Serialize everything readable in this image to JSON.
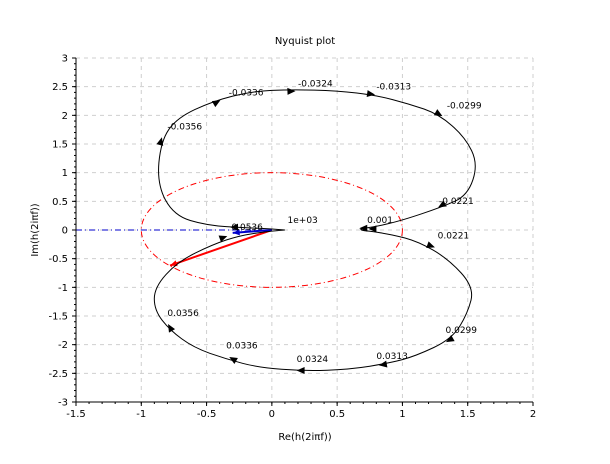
{
  "chart_data": {
    "type": "line",
    "title": "Nyquist plot",
    "xlabel": "Re(h(2iπf))",
    "ylabel": "Im(h(2iπf))",
    "xlim": [
      -1.5,
      2
    ],
    "ylim": [
      -3,
      3
    ],
    "xticks": [
      -1.5,
      -1,
      -0.5,
      0,
      0.5,
      1,
      1.5,
      2
    ],
    "xtick_labels": [
      "-1.5",
      "-1",
      "-0.5",
      "0",
      "0.5",
      "1",
      "1.5",
      "2"
    ],
    "yticks": [
      -3,
      -2.5,
      -2,
      -1.5,
      -1,
      -0.5,
      0,
      0.5,
      1,
      1.5,
      2,
      2.5,
      3
    ],
    "ytick_labels": [
      "-3",
      "-2.5",
      "-2",
      "-1.5",
      "-1",
      "-0.5",
      "0",
      "0.5",
      "1",
      "1.5",
      "2",
      "2.5",
      "3"
    ],
    "grid": true,
    "curve": {
      "points": [
        [
          0.1,
          0.0
        ],
        [
          0.0,
          0.02
        ],
        [
          -0.2,
          0.04
        ],
        [
          -0.5,
          0.08
        ],
        [
          -0.75,
          0.25
        ],
        [
          -0.88,
          0.8
        ],
        [
          -0.85,
          1.55
        ],
        [
          -0.73,
          1.95
        ],
        [
          -0.45,
          2.25
        ],
        [
          -0.15,
          2.42
        ],
        [
          0.15,
          2.45
        ],
        [
          0.5,
          2.43
        ],
        [
          0.8,
          2.35
        ],
        [
          1.05,
          2.2
        ],
        [
          1.28,
          2.02
        ],
        [
          1.48,
          1.62
        ],
        [
          1.58,
          1.15
        ],
        [
          1.5,
          0.6
        ],
        [
          1.3,
          0.4
        ],
        [
          1.0,
          0.17
        ],
        [
          0.8,
          0.06
        ],
        [
          0.7,
          0.03
        ],
        [
          0.67,
          0.0
        ],
        [
          0.78,
          -0.03
        ],
        [
          0.92,
          -0.08
        ],
        [
          1.12,
          -0.2
        ],
        [
          1.35,
          -0.5
        ],
        [
          1.55,
          -1.0
        ],
        [
          1.5,
          -1.45
        ],
        [
          1.38,
          -1.9
        ],
        [
          1.1,
          -2.2
        ],
        [
          0.9,
          -2.32
        ],
        [
          0.6,
          -2.43
        ],
        [
          0.25,
          -2.46
        ],
        [
          -0.1,
          -2.4
        ],
        [
          -0.35,
          -2.25
        ],
        [
          -0.6,
          -2.05
        ],
        [
          -0.78,
          -1.75
        ],
        [
          -0.9,
          -1.4
        ],
        [
          -0.9,
          -1.0
        ],
        [
          -0.72,
          -0.55
        ],
        [
          -0.45,
          -0.25
        ],
        [
          -0.25,
          -0.1
        ],
        [
          -0.05,
          -0.03
        ],
        [
          0.05,
          -0.01
        ],
        [
          0.1,
          0.0
        ]
      ],
      "arrows": [
        {
          "x": -0.29,
          "y": 0.05,
          "dir": 180
        },
        {
          "x": -0.85,
          "y": 1.55,
          "dir": 75
        },
        {
          "x": -0.42,
          "y": 2.23,
          "dir": 30
        },
        {
          "x": 0.15,
          "y": 2.42,
          "dir": 2
        },
        {
          "x": 0.76,
          "y": 2.37,
          "dir": -8
        },
        {
          "x": 1.28,
          "y": 2.02,
          "dir": -30
        },
        {
          "x": 1.3,
          "y": 0.43,
          "dir": -150
        },
        {
          "x": 0.7,
          "y": 0.03,
          "dir": 180
        },
        {
          "x": 0.77,
          "y": 0.02,
          "dir": 180
        },
        {
          "x": 1.22,
          "y": -0.28,
          "dir": -20
        },
        {
          "x": 1.36,
          "y": -1.92,
          "dir": 210
        },
        {
          "x": 0.85,
          "y": -2.35,
          "dir": 190
        },
        {
          "x": 0.22,
          "y": -2.45,
          "dir": 180
        },
        {
          "x": -0.3,
          "y": -2.25,
          "dir": 150
        },
        {
          "x": -0.78,
          "y": -1.7,
          "dir": 120
        },
        {
          "x": -0.37,
          "y": -0.13,
          "dir": 20
        }
      ]
    },
    "freq_labels": [
      {
        "text": "-0.0336",
        "x": -0.33,
        "y": 2.35
      },
      {
        "text": "-0.0324",
        "x": 0.2,
        "y": 2.5
      },
      {
        "text": "-0.0313",
        "x": 0.8,
        "y": 2.45
      },
      {
        "text": "-0.0299",
        "x": 1.34,
        "y": 2.12
      },
      {
        "text": "-0.0356",
        "x": -0.8,
        "y": 1.75
      },
      {
        "text": "-0.0221",
        "x": 1.28,
        "y": 0.45
      },
      {
        "text": "0.001",
        "x": 0.73,
        "y": 0.12
      },
      {
        "text": "1e+03",
        "x": 0.12,
        "y": 0.12
      },
      {
        "text": "0.0536",
        "x": -0.31,
        "y": 0.0
      },
      {
        "text": "0.0221",
        "x": 1.27,
        "y": -0.15
      },
      {
        "text": "0.0356",
        "x": -0.8,
        "y": -1.5
      },
      {
        "text": "0.0299",
        "x": 1.33,
        "y": -1.8
      },
      {
        "text": "0.0336",
        "x": -0.35,
        "y": -2.07
      },
      {
        "text": "0.0313",
        "x": 0.8,
        "y": -2.25
      },
      {
        "text": "0.0324",
        "x": 0.19,
        "y": -2.3
      }
    ],
    "unit_circle": {
      "center": [
        0,
        0
      ],
      "radius": 1,
      "color": "#ff0000"
    },
    "dashdot_line": {
      "x1": -1.5,
      "y1": 0,
      "x2": 0,
      "y2": 0,
      "color": "#0000cc"
    },
    "red_arrow": {
      "x1": 0,
      "y1": 0,
      "x2": -0.78,
      "y2": -0.62,
      "color": "#ff0000"
    },
    "blue_arrow": {
      "x1": 0,
      "y1": 0,
      "x2": -0.3,
      "y2": -0.05,
      "color": "#0000cc"
    }
  }
}
